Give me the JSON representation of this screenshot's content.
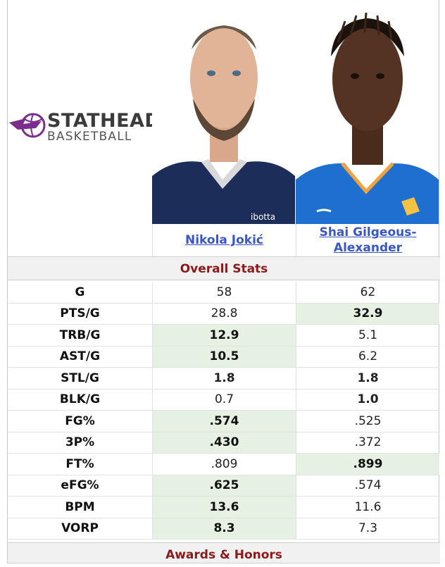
{
  "logo": {
    "line1": "STATHEAD",
    "line2": "BASKETBALL",
    "accent": "#7b2d8e"
  },
  "players": [
    {
      "name": "Nikola Jokić"
    },
    {
      "name": "Shai Gilgeous-Alexander"
    }
  ],
  "sections": {
    "overall": "Overall Stats",
    "awards": "Awards & Honors"
  },
  "stats": [
    {
      "label": "G",
      "p1": "58",
      "p2": "62",
      "winner": ""
    },
    {
      "label": "PTS/G",
      "p1": "28.8",
      "p2": "32.9",
      "winner": "p2"
    },
    {
      "label": "TRB/G",
      "p1": "12.9",
      "p2": "5.1",
      "winner": "p1"
    },
    {
      "label": "AST/G",
      "p1": "10.5",
      "p2": "6.2",
      "winner": "p1"
    },
    {
      "label": "STL/G",
      "p1": "1.8",
      "p2": "1.8",
      "winner": "both-bold"
    },
    {
      "label": "BLK/G",
      "p1": "0.7",
      "p2": "1.0",
      "winner": "p2-bold"
    },
    {
      "label": "FG%",
      "p1": ".574",
      "p2": ".525",
      "winner": "p1"
    },
    {
      "label": "3P%",
      "p1": ".430",
      "p2": ".372",
      "winner": "p1"
    },
    {
      "label": "FT%",
      "p1": ".809",
      "p2": ".899",
      "winner": "p2"
    },
    {
      "label": "eFG%",
      "p1": ".625",
      "p2": ".574",
      "winner": "p1"
    },
    {
      "label": "BPM",
      "p1": "13.6",
      "p2": "11.6",
      "winner": "p1"
    },
    {
      "label": "VORP",
      "p1": "8.3",
      "p2": "7.3",
      "winner": "p1"
    }
  ],
  "colors": {
    "highlight": "#e6f1e3",
    "section_text": "#8b1a1a",
    "link": "#3a56c5"
  }
}
